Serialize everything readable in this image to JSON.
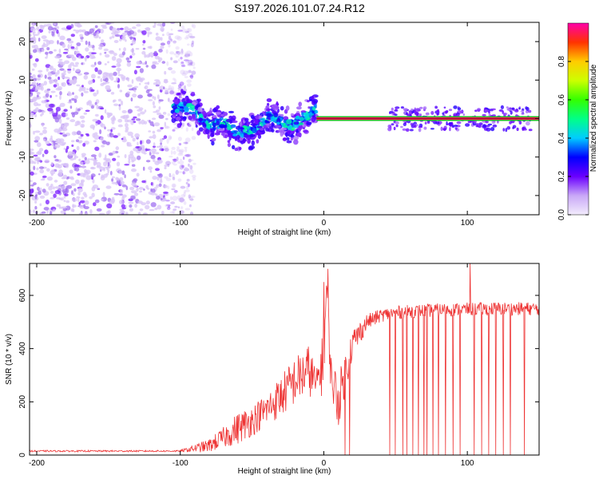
{
  "title": "S197.2026.101.07.24.R12",
  "chart_data": [
    {
      "type": "heatmap",
      "title": "S197.2026.101.07.24.R12",
      "xlabel": "Height of straight line (km)",
      "ylabel": "Frequency (Hz)",
      "xlim": [
        -205,
        150
      ],
      "ylim": [
        -25,
        25
      ],
      "xticks": [
        -200,
        -100,
        0,
        100
      ],
      "yticks": [
        -20,
        -10,
        0,
        10,
        20
      ],
      "colorbar": {
        "label": "Normalized spectral amplitude",
        "range": [
          0,
          1
        ],
        "ticks": [
          0.0,
          0.2,
          0.4,
          0.6,
          0.8
        ],
        "tick_labels": [
          "0.0",
          "0.2",
          "0.4",
          "0.6",
          "0.8"
        ]
      },
      "regions": [
        {
          "name": "noise",
          "x_range": [
            -205,
            -100
          ],
          "freq_range": [
            -25,
            25
          ],
          "amplitude_range": [
            0.0,
            0.15
          ]
        },
        {
          "name": "transition",
          "x_range": [
            -100,
            -5
          ],
          "amplitude_range": [
            0.1,
            0.45
          ]
        },
        {
          "name": "carrier",
          "x_range": [
            -5,
            150
          ],
          "frequency": 0,
          "amplitude": 0.95
        }
      ],
      "ridge": {
        "x": [
          -105,
          -95,
          -90,
          -80,
          -70,
          -60,
          -52,
          -45,
          -38,
          -30,
          -22,
          -15,
          -10,
          -5,
          0,
          150
        ],
        "y": [
          2.5,
          3,
          2,
          -2,
          -1,
          -4,
          -3,
          -2,
          1,
          -1,
          -2,
          0,
          1,
          3,
          0,
          0
        ]
      }
    },
    {
      "type": "line",
      "xlabel": "Height of straight line (km)",
      "ylabel": "SNR (10 * v/v)",
      "xlim": [
        -205,
        150
      ],
      "ylim": [
        0,
        720
      ],
      "xticks": [
        -200,
        -100,
        0,
        100
      ],
      "yticks": [
        0,
        200,
        400,
        600
      ],
      "series": [
        {
          "name": "SNR",
          "color": "#ee3333",
          "envelope_x": [
            -205,
            -100,
            -90,
            -80,
            -70,
            -60,
            -50,
            -40,
            -30,
            -20,
            -10,
            -5,
            0,
            2,
            5,
            10,
            20,
            30,
            40,
            50,
            60,
            80,
            100,
            120,
            150
          ],
          "envelope_y": [
            15,
            15,
            25,
            35,
            65,
            100,
            130,
            170,
            220,
            280,
            320,
            260,
            380,
            640,
            300,
            200,
            420,
            500,
            525,
            535,
            540,
            545,
            548,
            550,
            550
          ],
          "noise_amplitude": [
            3,
            3,
            15,
            25,
            40,
            60,
            60,
            60,
            80,
            90,
            100,
            60,
            150,
            80,
            80,
            100,
            60,
            30,
            25,
            25,
            25,
            25,
            25,
            25,
            25
          ],
          "dropouts_x": [
            15,
            18,
            46,
            50,
            55,
            58,
            62,
            66,
            70,
            72,
            76,
            80,
            85,
            90,
            95,
            105,
            110,
            115,
            120,
            125,
            130,
            140
          ],
          "spikes": [
            {
              "x": 3,
              "y": 700
            },
            {
              "x": 0,
              "y": 650
            },
            {
              "x": 102,
              "y": 720
            }
          ]
        }
      ]
    }
  ]
}
